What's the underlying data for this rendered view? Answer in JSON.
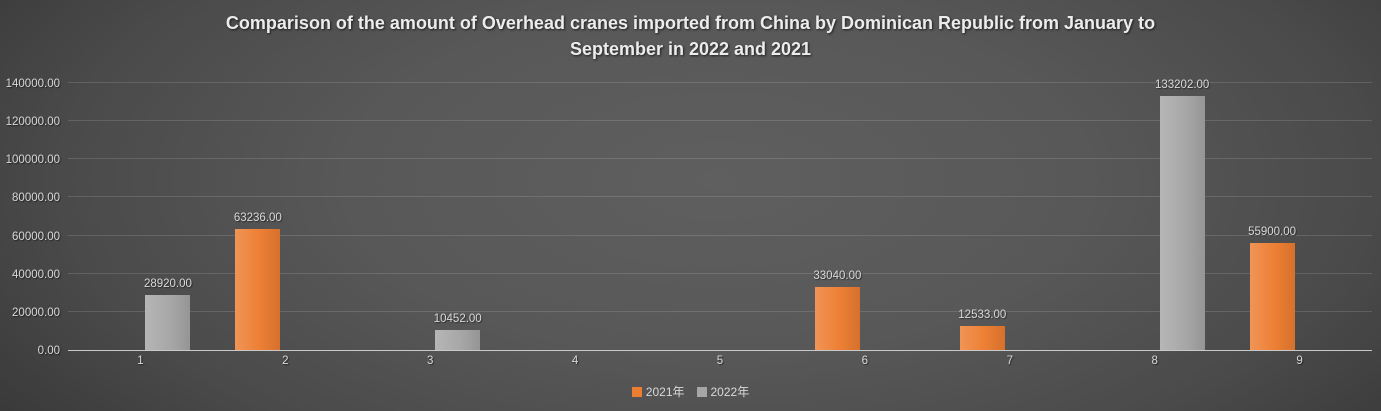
{
  "title": {
    "line1": "Comparison of the amount of Overhead cranes imported from China by Dominican Republic from January to",
    "line2": "September in 2022 and 2021"
  },
  "chart_data": {
    "type": "bar",
    "title": "Comparison of the amount of Overhead cranes imported from China by Dominican Republic from January to September in 2022 and 2021",
    "categories": [
      "1",
      "2",
      "3",
      "4",
      "5",
      "6",
      "7",
      "8",
      "9"
    ],
    "series": [
      {
        "name": "2021年",
        "color": "#ED7D31",
        "values": [
          0,
          63236,
          0,
          0,
          0,
          33040,
          12533,
          0,
          55900
        ],
        "data_labels": [
          "",
          "63236.00",
          "",
          "",
          "",
          "33040.00",
          "12533.00",
          "",
          "55900.00"
        ]
      },
      {
        "name": "2022年",
        "color": "#A6A6A6",
        "values": [
          28920,
          0,
          10452,
          0,
          0,
          0,
          0,
          133202,
          0
        ],
        "data_labels": [
          "28920.00",
          "",
          "10452.00",
          "",
          "",
          "",
          "",
          "133202.00",
          ""
        ]
      }
    ],
    "ylim": [
      0,
      140000
    ],
    "ytick_step": 20000,
    "ytick_labels": [
      "0.00",
      "20000.00",
      "40000.00",
      "60000.00",
      "80000.00",
      "100000.00",
      "120000.00",
      "140000.00"
    ],
    "grid": true,
    "legend_position": "bottom",
    "text_color": "#D9D9D9",
    "axis_line_color": "#C9C9C9"
  }
}
